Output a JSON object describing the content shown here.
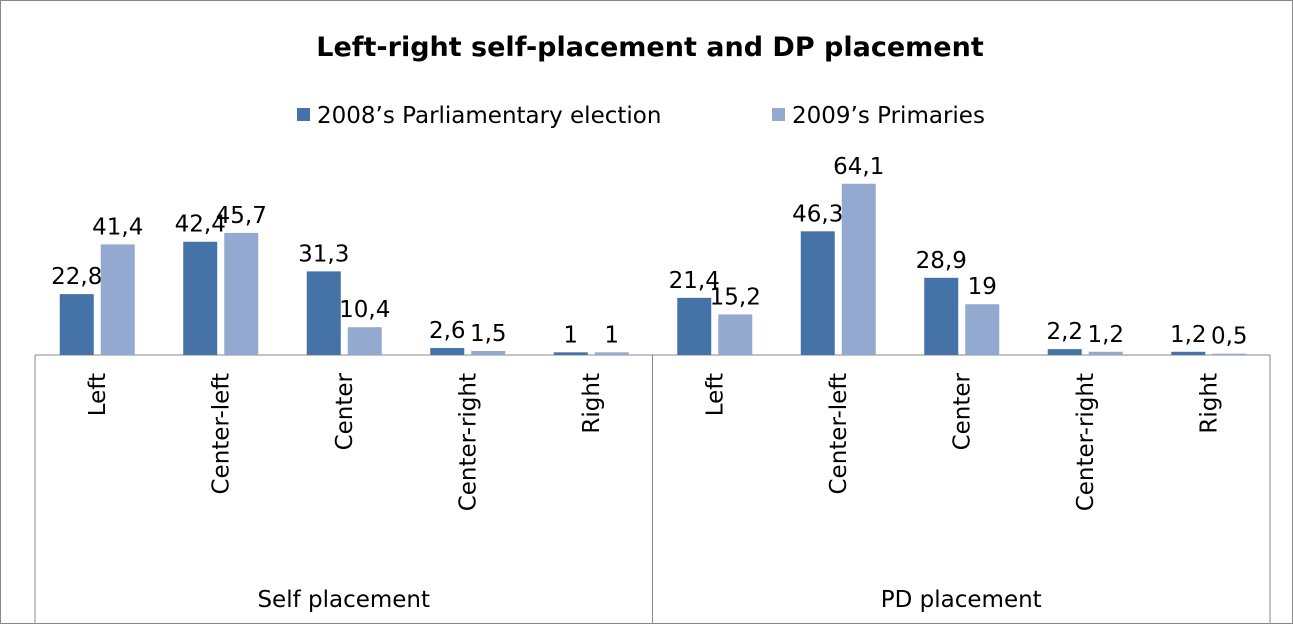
{
  "chart_data": {
    "type": "bar",
    "title": "Left-right self-placement and DP placement",
    "categories": [
      "Left",
      "Center-left",
      "Center",
      "Center-right",
      "Right",
      "Left",
      "Center-left",
      "Center",
      "Center-right",
      "Right"
    ],
    "group_labels": [
      "Self placement",
      "PD placement"
    ],
    "series": [
      {
        "name": "2008’s Parliamentary election",
        "color": "#4572a7",
        "values": [
          22.8,
          42.4,
          31.3,
          2.6,
          1,
          21.4,
          46.3,
          28.9,
          2.2,
          1.2
        ],
        "value_labels": [
          "22,8",
          "42,4",
          "31,3",
          "2,6",
          "1",
          "21,4",
          "46,3",
          "28,9",
          "2,2",
          "1,2"
        ]
      },
      {
        "name": "2009’s Primaries",
        "color": "#93a9cf",
        "values": [
          41.4,
          45.7,
          10.4,
          1.5,
          1,
          15.2,
          64.1,
          19,
          1.2,
          0.5
        ],
        "value_labels": [
          "41,4",
          "45,7",
          "10,4",
          "1,5",
          "1",
          "15,2",
          "64,1",
          "19",
          "1,2",
          "0,5"
        ]
      }
    ],
    "ylim": [
      0,
      70
    ],
    "legend": "top"
  }
}
